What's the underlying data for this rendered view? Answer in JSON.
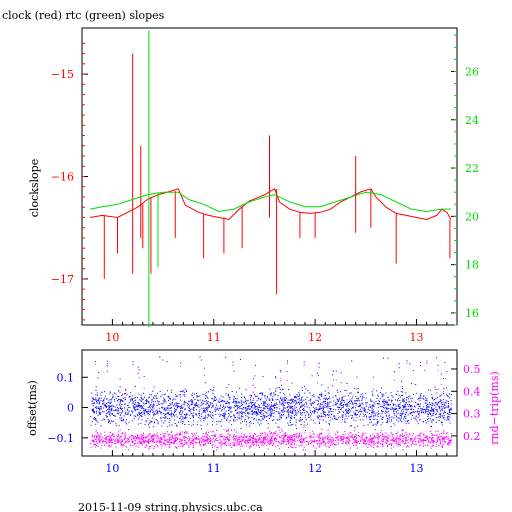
{
  "title": "clock (red) rtc (green) slopes",
  "footer": "2015-11-09 string.physics.ubc.ca",
  "colors": {
    "red": "#ff0000",
    "green": "#00dd00",
    "blue": "#0000ff",
    "magenta": "#ff00ff",
    "axis": "#000000"
  },
  "chart_data": [
    {
      "type": "line",
      "title": "clock (red) rtc (green) slopes",
      "ylabel": "clockslope",
      "y2label": "",
      "xlim": [
        9.7,
        13.4
      ],
      "ylim": [
        -17.45,
        -14.55
      ],
      "y2lim": [
        15.5,
        27.8
      ],
      "x_ticks": [
        10,
        11,
        12,
        13
      ],
      "y_ticks": [
        -15,
        -16,
        -17
      ],
      "y2_ticks": [
        16,
        18,
        20,
        22,
        24,
        26
      ],
      "x_tick_labels": [
        "10",
        "11",
        "12",
        "13"
      ],
      "y_tick_labels": [
        "−15",
        "−16",
        "−17"
      ],
      "y2_tick_labels": [
        "16",
        "18",
        "20",
        "22",
        "24",
        "26"
      ],
      "grid": false,
      "legend": "none",
      "series": [
        {
          "name": "clock",
          "axis": "left",
          "color": "#ff0000",
          "x": [
            9.78,
            9.9,
            10.05,
            10.15,
            10.25,
            10.35,
            10.45,
            10.55,
            10.65,
            10.72,
            10.85,
            10.95,
            11.05,
            11.15,
            11.25,
            11.35,
            11.5,
            11.6,
            11.65,
            11.75,
            11.85,
            11.95,
            12.05,
            12.15,
            12.25,
            12.35,
            12.45,
            12.55,
            12.6,
            12.7,
            12.8,
            12.9,
            13.0,
            13.1,
            13.2,
            13.25,
            13.3,
            13.34
          ],
          "y": [
            -16.4,
            -16.38,
            -16.4,
            -16.35,
            -16.3,
            -16.22,
            -16.18,
            -16.15,
            -16.12,
            -16.28,
            -16.35,
            -16.38,
            -16.4,
            -16.42,
            -16.32,
            -16.24,
            -16.18,
            -16.12,
            -16.25,
            -16.32,
            -16.35,
            -16.36,
            -16.35,
            -16.32,
            -16.25,
            -16.2,
            -16.15,
            -16.12,
            -16.2,
            -16.3,
            -16.36,
            -16.38,
            -16.4,
            -16.42,
            -16.38,
            -16.32,
            -16.35,
            -16.42
          ],
          "spikes": [
            {
              "x": 9.92,
              "low": -17.0,
              "high": -16.38
            },
            {
              "x": 10.05,
              "low": -16.75,
              "high": -16.4
            },
            {
              "x": 10.2,
              "low": -16.95,
              "high": -14.8
            },
            {
              "x": 10.28,
              "low": -16.6,
              "high": -15.7
            },
            {
              "x": 10.3,
              "low": -16.7,
              "high": -16.27
            },
            {
              "x": 10.38,
              "low": -16.95,
              "high": -16.2
            },
            {
              "x": 10.62,
              "low": -16.6,
              "high": -16.14
            },
            {
              "x": 10.9,
              "low": -16.8,
              "high": -16.37
            },
            {
              "x": 11.1,
              "low": -16.75,
              "high": -16.4
            },
            {
              "x": 11.28,
              "low": -16.7,
              "high": -16.3
            },
            {
              "x": 11.55,
              "low": -16.4,
              "high": -15.6
            },
            {
              "x": 11.62,
              "low": -17.15,
              "high": -16.12
            },
            {
              "x": 11.85,
              "low": -16.6,
              "high": -16.35
            },
            {
              "x": 12.0,
              "low": -16.6,
              "high": -16.35
            },
            {
              "x": 12.4,
              "low": -16.55,
              "high": -15.8
            },
            {
              "x": 12.55,
              "low": -16.5,
              "high": -16.12
            },
            {
              "x": 12.8,
              "low": -16.85,
              "high": -16.36
            },
            {
              "x": 13.33,
              "low": -16.8,
              "high": -16.42
            }
          ]
        },
        {
          "name": "rtc",
          "axis": "right",
          "color": "#00dd00",
          "x": [
            9.78,
            9.9,
            10.05,
            10.2,
            10.35,
            10.5,
            10.65,
            10.75,
            10.9,
            11.05,
            11.2,
            11.35,
            11.5,
            11.6,
            11.75,
            11.9,
            12.05,
            12.2,
            12.35,
            12.5,
            12.65,
            12.8,
            12.95,
            13.1,
            13.25,
            13.34
          ],
          "y": [
            20.3,
            20.4,
            20.5,
            20.7,
            20.9,
            21.0,
            21.0,
            20.7,
            20.5,
            20.2,
            20.3,
            20.6,
            20.8,
            20.9,
            20.6,
            20.4,
            20.4,
            20.6,
            20.8,
            21.0,
            20.9,
            20.6,
            20.3,
            20.2,
            20.3,
            20.3
          ],
          "spikes": [
            {
              "x": 10.36,
              "low": 15.4,
              "high": 27.7
            },
            {
              "x": 10.45,
              "low": 17.9,
              "high": 21.0
            }
          ]
        }
      ]
    },
    {
      "type": "scatter",
      "ylabel": "offset(ms)",
      "y2label": "rnd−trip(ms)",
      "xlim": [
        9.7,
        13.4
      ],
      "ylim": [
        -0.16,
        0.19
      ],
      "y2lim": [
        0.11,
        0.585
      ],
      "x_ticks": [
        10,
        11,
        12,
        13
      ],
      "y_ticks": [
        -0.1,
        0,
        0.1
      ],
      "y2_ticks": [
        0.2,
        0.3,
        0.4,
        0.5
      ],
      "x_tick_labels": [
        "10",
        "11",
        "12",
        "13"
      ],
      "y_tick_labels": [
        "−0.1",
        "0",
        "0.1"
      ],
      "y2_tick_labels": [
        "0.2",
        "0.3",
        "0.4",
        "0.5"
      ],
      "grid": false,
      "legend": "none",
      "series": [
        {
          "name": "offset",
          "axis": "left",
          "color": "#0000ff",
          "x_range": [
            9.78,
            13.34
          ],
          "center": 0.0,
          "spread": 0.04,
          "outlier_max": 0.17
        },
        {
          "name": "rnd-trip",
          "axis": "right",
          "color": "#ff00ff",
          "x_range": [
            9.78,
            13.34
          ],
          "center": 0.185,
          "spread": 0.025,
          "outlier_max": 0.56
        }
      ]
    }
  ]
}
